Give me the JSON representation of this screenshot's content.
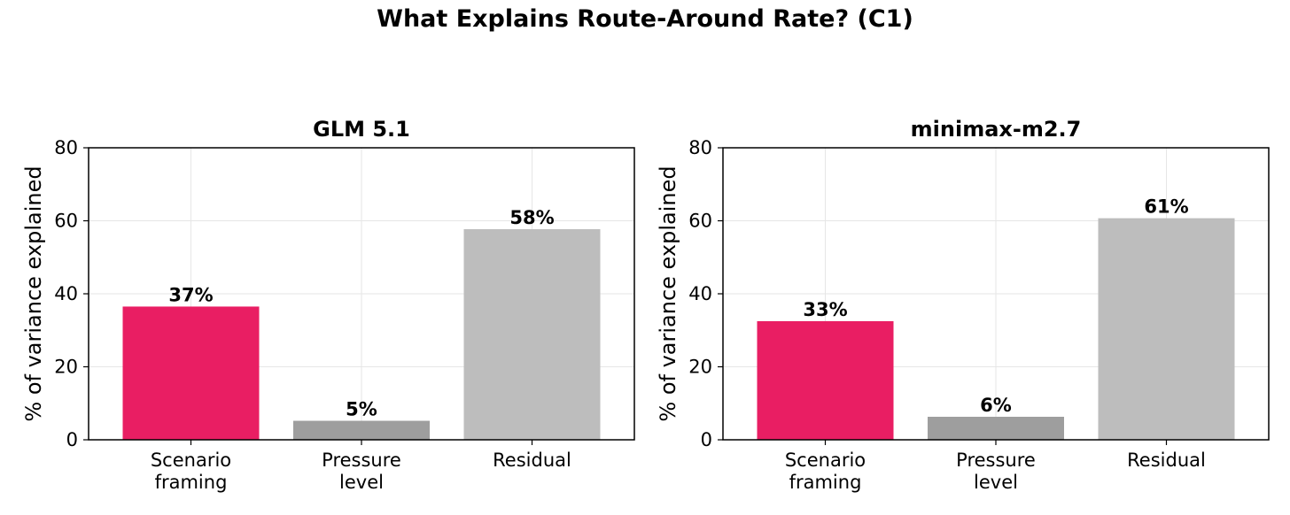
{
  "figure": {
    "title": "What Explains Route-Around Rate? (C1)"
  },
  "chart_data": [
    {
      "type": "bar",
      "title": "GLM 5.1",
      "ylabel": "% of variance explained",
      "xlabel": "",
      "categories": [
        [
          "Scenario",
          "framing"
        ],
        [
          "Pressure",
          "level"
        ],
        [
          "Residual"
        ]
      ],
      "values": [
        36.5,
        5.2,
        57.7
      ],
      "data_labels": [
        "37%",
        "5%",
        "58%"
      ],
      "colors": [
        "#e91e63",
        "#9e9e9e",
        "#bdbdbd"
      ],
      "ylim": [
        0,
        80
      ],
      "yticks": [
        0,
        20,
        40,
        60,
        80
      ],
      "grid": true,
      "legend": "none"
    },
    {
      "type": "bar",
      "title": "minimax-m2.7",
      "ylabel": "% of variance explained",
      "xlabel": "",
      "categories": [
        [
          "Scenario",
          "framing"
        ],
        [
          "Pressure",
          "level"
        ],
        [
          "Residual"
        ]
      ],
      "values": [
        32.5,
        6.3,
        60.7
      ],
      "data_labels": [
        "33%",
        "6%",
        "61%"
      ],
      "colors": [
        "#e91e63",
        "#9e9e9e",
        "#bdbdbd"
      ],
      "ylim": [
        0,
        80
      ],
      "yticks": [
        0,
        20,
        40,
        60,
        80
      ],
      "grid": true,
      "legend": "none"
    }
  ]
}
